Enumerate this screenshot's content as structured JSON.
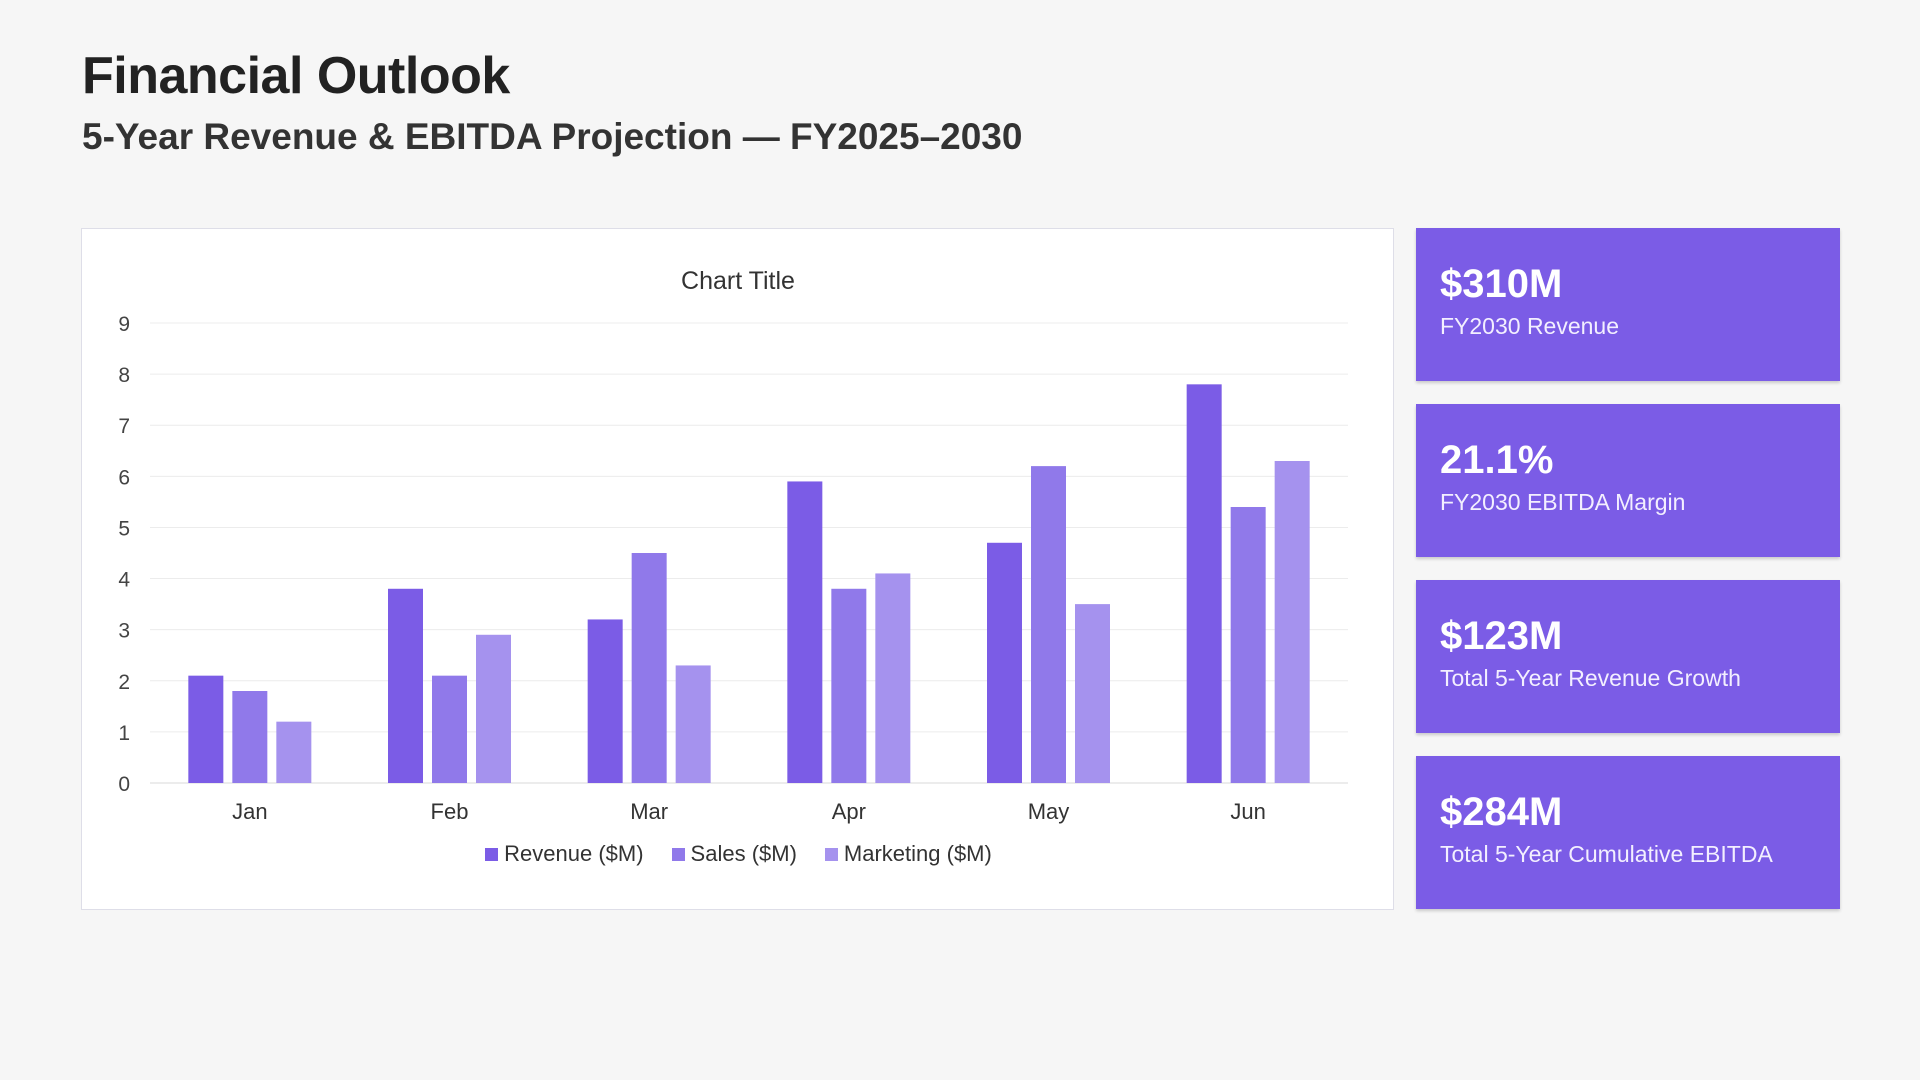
{
  "header": {
    "title": "Financial Outlook",
    "subtitle": "5-Year Revenue & EBITDA Projection — FY2025–2030"
  },
  "kpis": [
    {
      "value": "$310M",
      "label": "FY2030 Revenue"
    },
    {
      "value": "21.1%",
      "label": "FY2030 EBITDA Margin"
    },
    {
      "value": "$123M",
      "label": "Total 5-Year Revenue Growth"
    },
    {
      "value": "$284M",
      "label": "Total 5-Year Cumulative EBITDA"
    }
  ],
  "colors": {
    "kpi_background": "#7b5ce6",
    "series": [
      "#7b5ce6",
      "#9079ea",
      "#a592ee"
    ]
  },
  "chart_data": {
    "type": "bar",
    "title": "Chart Title",
    "xlabel": "",
    "ylabel": "",
    "categories": [
      "Jan",
      "Feb",
      "Mar",
      "Apr",
      "May",
      "Jun"
    ],
    "series": [
      {
        "name": "Revenue ($M)",
        "values": [
          2.1,
          3.8,
          3.2,
          5.9,
          4.7,
          7.8
        ]
      },
      {
        "name": "Sales ($M)",
        "values": [
          1.8,
          2.1,
          4.5,
          3.8,
          6.2,
          5.4
        ]
      },
      {
        "name": "Marketing ($M)",
        "values": [
          1.2,
          2.9,
          2.3,
          4.1,
          3.5,
          6.3
        ]
      }
    ],
    "ylim": [
      0,
      9
    ],
    "yticks": [
      "0",
      "1",
      "2",
      "3",
      "4",
      "5",
      "6",
      "7",
      "8",
      "9"
    ],
    "grid": true,
    "legend_position": "bottom"
  }
}
